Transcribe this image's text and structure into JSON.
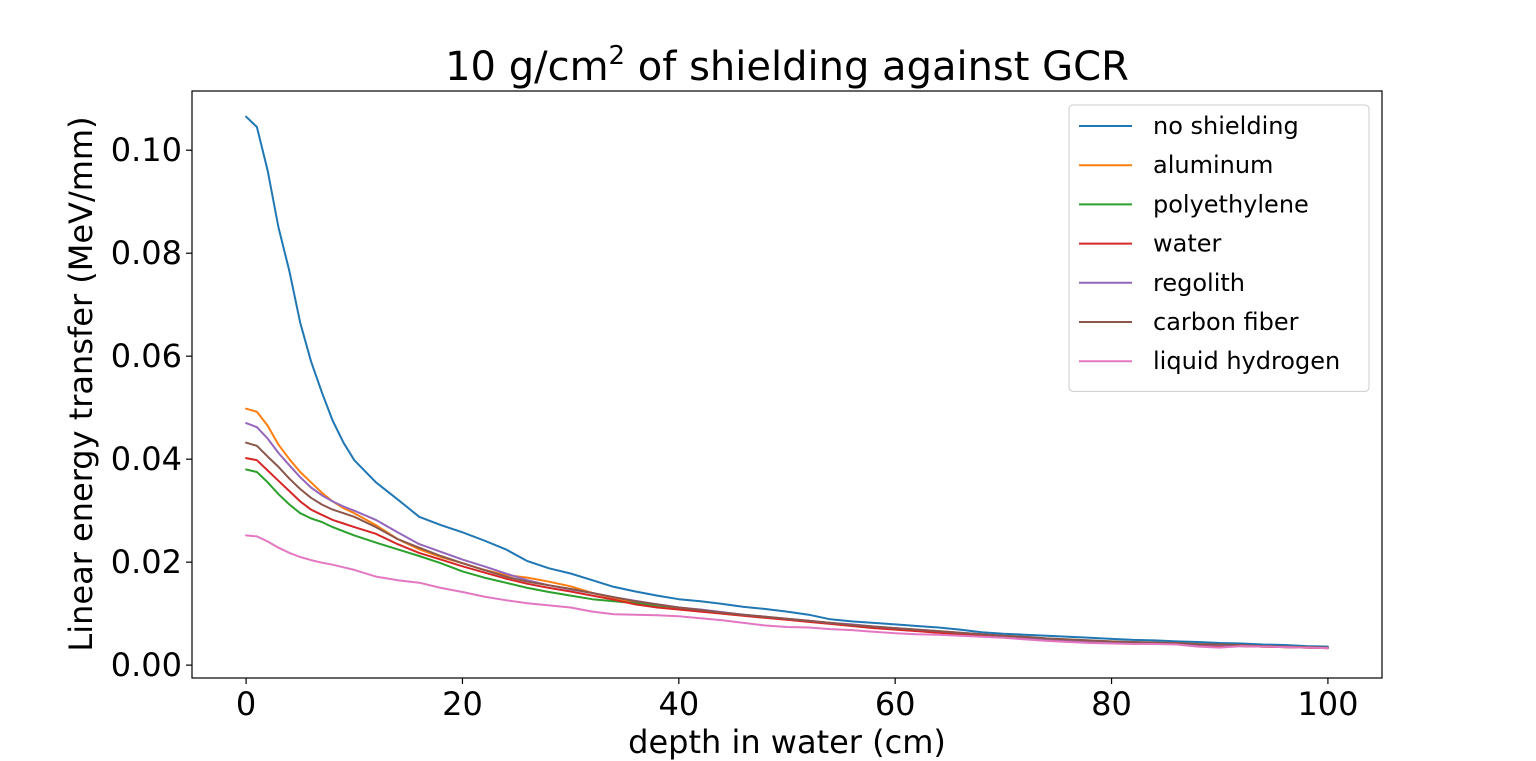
{
  "chart_data": {
    "type": "line",
    "title": "10 g/cm",
    "title_superscript": "2",
    "title_suffix": " of shielding against GCR",
    "xlabel": "depth in water (cm)",
    "ylabel": "Linear energy transfer (MeV/mm)",
    "xlim": [
      -5,
      105
    ],
    "ylim": [
      -0.0025,
      0.1115
    ],
    "x_ticks": [
      0,
      20,
      40,
      60,
      80,
      100
    ],
    "x_tick_labels": [
      "0",
      "20",
      "40",
      "60",
      "80",
      "100"
    ],
    "y_ticks": [
      0.0,
      0.02,
      0.04,
      0.06,
      0.08,
      0.1
    ],
    "y_tick_labels": [
      "0.00",
      "0.02",
      "0.04",
      "0.06",
      "0.08",
      "0.10"
    ],
    "grid": false,
    "legend_position": "top-right",
    "x": [
      0,
      1,
      2,
      3,
      4,
      5,
      6,
      7,
      8,
      9,
      10,
      12,
      14,
      16,
      18,
      20,
      22,
      24,
      26,
      28,
      30,
      32,
      34,
      36,
      38,
      40,
      42,
      44,
      46,
      48,
      50,
      52,
      54,
      56,
      58,
      60,
      62,
      64,
      66,
      68,
      70,
      72,
      74,
      76,
      78,
      80,
      82,
      84,
      86,
      88,
      90,
      92,
      94,
      96,
      98,
      100
    ],
    "series": [
      {
        "name": "no shielding",
        "color": "#1f77b4",
        "values": [
          0.1065,
          0.1045,
          0.096,
          0.085,
          0.0765,
          0.0665,
          0.059,
          0.053,
          0.0475,
          0.0432,
          0.0398,
          0.0355,
          0.0322,
          0.0288,
          0.0272,
          0.0258,
          0.0242,
          0.0225,
          0.0202,
          0.0188,
          0.0178,
          0.0165,
          0.0152,
          0.0143,
          0.0135,
          0.0128,
          0.0124,
          0.0119,
          0.0113,
          0.0109,
          0.0104,
          0.0098,
          0.0089,
          0.0085,
          0.0082,
          0.0079,
          0.0076,
          0.0073,
          0.0069,
          0.0064,
          0.0061,
          0.0059,
          0.0057,
          0.0055,
          0.0053,
          0.0051,
          0.0049,
          0.0048,
          0.0046,
          0.0045,
          0.0043,
          0.0042,
          0.004,
          0.0039,
          0.0037,
          0.0036
        ]
      },
      {
        "name": "aluminum",
        "color": "#ff7f0e",
        "values": [
          0.0498,
          0.0492,
          0.0465,
          0.0428,
          0.04,
          0.0375,
          0.0355,
          0.0335,
          0.0318,
          0.0305,
          0.0295,
          0.0272,
          0.0245,
          0.0225,
          0.021,
          0.0198,
          0.0185,
          0.0175,
          0.017,
          0.0162,
          0.0153,
          0.014,
          0.013,
          0.0122,
          0.0115,
          0.011,
          0.0105,
          0.01,
          0.0096,
          0.0092,
          0.0088,
          0.0085,
          0.0082,
          0.0078,
          0.0074,
          0.007,
          0.0068,
          0.0065,
          0.0062,
          0.0059,
          0.0057,
          0.0054,
          0.0051,
          0.0049,
          0.0047,
          0.0045,
          0.0044,
          0.0043,
          0.0042,
          0.004,
          0.0038,
          0.0038,
          0.0036,
          0.0035,
          0.0034,
          0.0033
        ]
      },
      {
        "name": "polyethylene",
        "color": "#2ca02c",
        "values": [
          0.038,
          0.0375,
          0.0355,
          0.0332,
          0.0312,
          0.0295,
          0.0285,
          0.0278,
          0.0268,
          0.026,
          0.0252,
          0.0238,
          0.0225,
          0.0212,
          0.0198,
          0.0182,
          0.017,
          0.016,
          0.015,
          0.0142,
          0.0135,
          0.0128,
          0.0124,
          0.012,
          0.0116,
          0.0112,
          0.0106,
          0.0101,
          0.0097,
          0.0093,
          0.0089,
          0.0085,
          0.0081,
          0.0078,
          0.0074,
          0.0071,
          0.0068,
          0.0065,
          0.0062,
          0.0059,
          0.0056,
          0.0053,
          0.005,
          0.0047,
          0.0045,
          0.0044,
          0.0043,
          0.0042,
          0.0041,
          0.004,
          0.0038,
          0.0037,
          0.0036,
          0.0035,
          0.0034,
          0.0033
        ]
      },
      {
        "name": "water",
        "color": "#d62728",
        "values": [
          0.0402,
          0.0398,
          0.0378,
          0.0358,
          0.0338,
          0.0318,
          0.0302,
          0.0292,
          0.0282,
          0.0275,
          0.0268,
          0.0255,
          0.0235,
          0.0218,
          0.0205,
          0.0192,
          0.018,
          0.0168,
          0.0158,
          0.015,
          0.0143,
          0.0135,
          0.0127,
          0.0118,
          0.0112,
          0.0108,
          0.0104,
          0.01,
          0.0096,
          0.0092,
          0.0088,
          0.0084,
          0.008,
          0.0076,
          0.0072,
          0.0069,
          0.0066,
          0.0063,
          0.006,
          0.0058,
          0.0055,
          0.0052,
          0.0049,
          0.0047,
          0.0045,
          0.0044,
          0.0043,
          0.0042,
          0.0041,
          0.0039,
          0.0038,
          0.0037,
          0.0036,
          0.0035,
          0.0034,
          0.0033
        ]
      },
      {
        "name": "regolith",
        "color": "#9467bd",
        "values": [
          0.047,
          0.0462,
          0.044,
          0.0412,
          0.0388,
          0.0365,
          0.0345,
          0.033,
          0.0318,
          0.0308,
          0.03,
          0.0282,
          0.0258,
          0.0235,
          0.022,
          0.0205,
          0.0192,
          0.0178,
          0.0165,
          0.0155,
          0.0147,
          0.014,
          0.0132,
          0.0125,
          0.0118,
          0.0112,
          0.0108,
          0.0103,
          0.0098,
          0.0094,
          0.009,
          0.0086,
          0.0082,
          0.0079,
          0.0075,
          0.0072,
          0.0069,
          0.0066,
          0.0063,
          0.006,
          0.0057,
          0.0054,
          0.0051,
          0.0049,
          0.0047,
          0.0045,
          0.0044,
          0.0043,
          0.0042,
          0.004,
          0.0039,
          0.0038,
          0.0037,
          0.0036,
          0.0035,
          0.0034
        ]
      },
      {
        "name": "carbon fiber",
        "color": "#8c564b",
        "values": [
          0.0432,
          0.0426,
          0.0405,
          0.0385,
          0.0362,
          0.0342,
          0.0325,
          0.0312,
          0.0302,
          0.0295,
          0.0288,
          0.0268,
          0.0245,
          0.0228,
          0.0212,
          0.0198,
          0.0185,
          0.0172,
          0.0162,
          0.0155,
          0.0148,
          0.014,
          0.0132,
          0.0124,
          0.0118,
          0.0112,
          0.0107,
          0.0102,
          0.0098,
          0.0094,
          0.009,
          0.0086,
          0.0082,
          0.0078,
          0.0075,
          0.0072,
          0.0069,
          0.0066,
          0.0063,
          0.006,
          0.0057,
          0.0055,
          0.0052,
          0.005,
          0.0048,
          0.0046,
          0.0045,
          0.0044,
          0.0043,
          0.0041,
          0.004,
          0.0039,
          0.0037,
          0.0036,
          0.0035,
          0.0034
        ]
      },
      {
        "name": "liquid hydrogen",
        "color": "#e377c2",
        "values": [
          0.0252,
          0.025,
          0.024,
          0.0228,
          0.0218,
          0.021,
          0.0204,
          0.0199,
          0.0195,
          0.019,
          0.0185,
          0.0172,
          0.0165,
          0.016,
          0.015,
          0.0142,
          0.0133,
          0.0126,
          0.012,
          0.0116,
          0.0112,
          0.0104,
          0.0099,
          0.0098,
          0.0097,
          0.0095,
          0.0091,
          0.0087,
          0.0082,
          0.0077,
          0.0074,
          0.0073,
          0.007,
          0.0068,
          0.0065,
          0.0062,
          0.006,
          0.0059,
          0.0057,
          0.0055,
          0.0053,
          0.005,
          0.0047,
          0.0045,
          0.0043,
          0.0042,
          0.0041,
          0.0041,
          0.004,
          0.0036,
          0.0034,
          0.0037,
          0.0036,
          0.0035,
          0.0034,
          0.0033
        ]
      }
    ]
  }
}
